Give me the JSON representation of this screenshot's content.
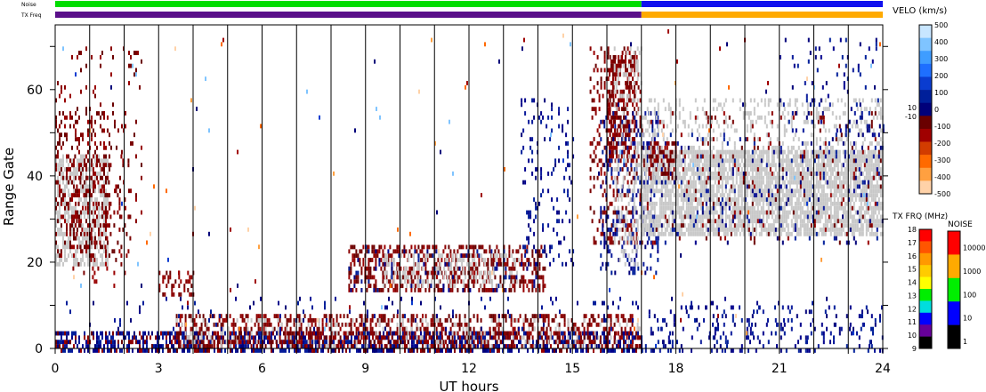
{
  "chart_data": {
    "type": "heatmap",
    "xlabel": "UT hours",
    "ylabel": "Range Gate",
    "xlim": [
      0,
      24
    ],
    "ylim": [
      0,
      75
    ],
    "x_ticks": [
      0,
      3,
      6,
      9,
      12,
      15,
      18,
      21,
      24
    ],
    "y_ticks": [
      0,
      20,
      40,
      60
    ],
    "hour_lines": [
      1,
      2,
      3,
      4,
      5,
      6,
      7,
      8,
      9,
      10,
      11,
      12,
      13,
      14,
      15,
      16,
      17,
      18,
      19,
      20,
      21,
      22,
      23
    ],
    "noise_label": "Noise",
    "txfreq_label": "TX Freq",
    "noise_bar": [
      {
        "from": 0,
        "to": 17,
        "color": "#00dd00"
      },
      {
        "from": 17,
        "to": 24,
        "color": "#1010ee"
      }
    ],
    "txfreq_bar": [
      {
        "from": 0,
        "to": 17,
        "color": "#5a0f8a"
      },
      {
        "from": 17,
        "to": 24,
        "color": "#ffaa00"
      }
    ],
    "velocity_scale": {
      "title": "VELO (km/s)",
      "ticks": [
        "500",
        "400",
        "300",
        "200",
        "100",
        "0",
        "10",
        "-10",
        "-100",
        "-200",
        "-300",
        "-400",
        "-500"
      ],
      "colors": [
        "#c8e6ff",
        "#7fc4ff",
        "#3f9dff",
        "#1e6fff",
        "#0a3cd0",
        "#001f9a",
        "#00007a",
        "#6a0000",
        "#a00000",
        "#d23c00",
        "#ff6a00",
        "#ffa040",
        "#ffd2a8"
      ]
    },
    "txfreq_scale": {
      "title": "TX FRQ (MHz)",
      "ticks": [
        "18",
        "17",
        "16",
        "15",
        "14",
        "13",
        "12",
        "11",
        "10",
        "9"
      ],
      "colors": [
        "#ff0000",
        "#ff5500",
        "#ff9900",
        "#ffcc00",
        "#ffff00",
        "#00ee00",
        "#00dddd",
        "#0000ff",
        "#660099",
        "#000000"
      ]
    },
    "noise_scale": {
      "title": "NOISE",
      "ticks": [
        "10000",
        "1000",
        "100",
        "10",
        "1"
      ],
      "colors": [
        "#ff0000",
        "#ffaa00",
        "#00ee00",
        "#0000ff",
        "#000000"
      ]
    },
    "regions": [
      {
        "x0": 0.0,
        "x1": 1.5,
        "y0": 20,
        "y1": 45,
        "kind": "gray",
        "density": 0.55
      },
      {
        "x0": 0.0,
        "x1": 1.6,
        "y0": 22,
        "y1": 55,
        "kind": "neg",
        "density": 0.25
      },
      {
        "x0": 0.0,
        "x1": 2.5,
        "y0": 30,
        "y1": 70,
        "kind": "neg",
        "density": 0.06
      },
      {
        "x0": 0.5,
        "x1": 2.2,
        "y0": 15,
        "y1": 45,
        "kind": "neg",
        "density": 0.08
      },
      {
        "x0": 3.0,
        "x1": 4.0,
        "y0": 13,
        "y1": 18,
        "kind": "neg",
        "density": 0.3
      },
      {
        "x0": 0.0,
        "x1": 17.0,
        "y0": 0,
        "y1": 4,
        "kind": "pos",
        "density": 0.45
      },
      {
        "x0": 0.0,
        "x1": 17.0,
        "y0": 0,
        "y1": 4,
        "kind": "neg",
        "density": 0.2
      },
      {
        "x0": 3.5,
        "x1": 17.0,
        "y0": 1,
        "y1": 8,
        "kind": "neg",
        "density": 0.35
      },
      {
        "x0": 3.5,
        "x1": 17.0,
        "y0": 1,
        "y1": 7,
        "kind": "gray",
        "density": 0.1
      },
      {
        "x0": 0.0,
        "x1": 24.0,
        "y0": 0,
        "y1": 12,
        "kind": "pos",
        "density": 0.04
      },
      {
        "x0": 8.5,
        "x1": 14.2,
        "y0": 14,
        "y1": 24,
        "kind": "neg",
        "density": 0.4
      },
      {
        "x0": 9.5,
        "x1": 13.5,
        "y0": 15,
        "y1": 22,
        "kind": "gray",
        "density": 0.3
      },
      {
        "x0": 8.5,
        "x1": 14.0,
        "y0": 14,
        "y1": 23,
        "kind": "pos",
        "density": 0.05
      },
      {
        "x0": 13.5,
        "x1": 15.0,
        "y0": 20,
        "y1": 58,
        "kind": "pos",
        "density": 0.12
      },
      {
        "x0": 15.5,
        "x1": 17.0,
        "y0": 25,
        "y1": 70,
        "kind": "neg",
        "density": 0.2
      },
      {
        "x0": 16.0,
        "x1": 16.8,
        "y0": 45,
        "y1": 68,
        "kind": "neg",
        "density": 0.45
      },
      {
        "x0": 15.8,
        "x1": 17.5,
        "y0": 18,
        "y1": 55,
        "kind": "pos",
        "density": 0.2
      },
      {
        "x0": 16.2,
        "x1": 17.0,
        "y0": 20,
        "y1": 70,
        "kind": "gray",
        "density": 0.2
      },
      {
        "x0": 17.0,
        "x1": 24.0,
        "y0": 27,
        "y1": 46,
        "kind": "gray",
        "density": 0.75
      },
      {
        "x0": 17.0,
        "x1": 24.0,
        "y0": 46,
        "y1": 58,
        "kind": "gray",
        "density": 0.2
      },
      {
        "x0": 17.0,
        "x1": 24.0,
        "y0": 25,
        "y1": 50,
        "kind": "pos",
        "density": 0.06
      },
      {
        "x0": 17.0,
        "x1": 24.0,
        "y0": 25,
        "y1": 55,
        "kind": "neg",
        "density": 0.04
      },
      {
        "x0": 17.2,
        "x1": 18.0,
        "y0": 40,
        "y1": 48,
        "kind": "neg",
        "density": 0.4
      },
      {
        "x0": 21.0,
        "x1": 24.0,
        "y0": 50,
        "y1": 72,
        "kind": "pos",
        "density": 0.06
      },
      {
        "x0": 17.0,
        "x1": 24.0,
        "y0": 0,
        "y1": 10,
        "kind": "pos",
        "density": 0.1
      },
      {
        "x0": 0.0,
        "x1": 24.0,
        "y0": 0,
        "y1": 75,
        "kind": "scatter",
        "density": 0.004
      }
    ]
  }
}
